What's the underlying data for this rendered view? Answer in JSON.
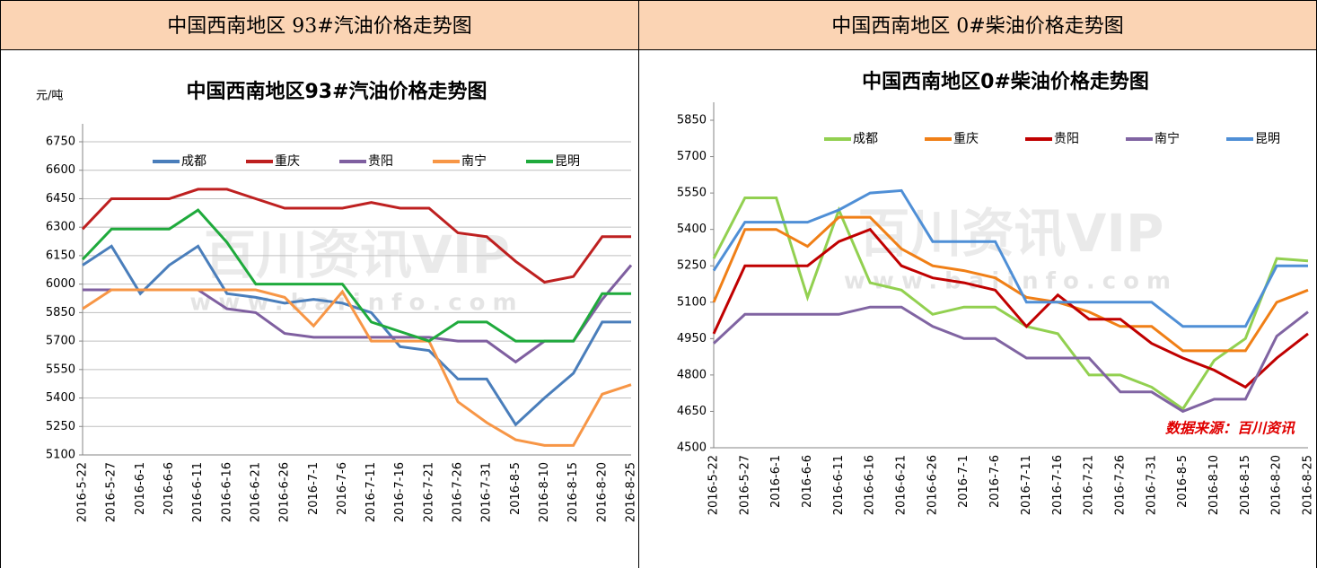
{
  "header": {
    "left": "中国西南地区 93#汽油价格走势图",
    "right": "中国西南地区 0#柴油价格走势图"
  },
  "chart_data": [
    {
      "type": "line",
      "title": "中国西南地区93#汽油价格走势图",
      "y_unit": "元/吨",
      "watermark": [
        "百川资讯VIP",
        "www.baiinfo.com"
      ],
      "categories": [
        "2016-5-22",
        "2016-5-27",
        "2016-6-1",
        "2016-6-6",
        "2016-6-11",
        "2016-6-16",
        "2016-6-21",
        "2016-6-26",
        "2016-7-1",
        "2016-7-6",
        "2016-7-11",
        "2016-7-16",
        "2016-7-21",
        "2016-7-26",
        "2016-7-31",
        "2016-8-5",
        "2016-8-10",
        "2016-8-15",
        "2016-8-20",
        "2016-8-25"
      ],
      "series": [
        {
          "name": "成都",
          "color": "#4a7ebb",
          "values": [
            6100,
            6200,
            5950,
            6100,
            6200,
            5950,
            5930,
            5900,
            5920,
            5900,
            5850,
            5670,
            5650,
            5500,
            5500,
            5260,
            5400,
            5530,
            5800,
            5800
          ]
        },
        {
          "name": "重庆",
          "color": "#be2020",
          "values": [
            6290,
            6450,
            6450,
            6450,
            6500,
            6500,
            6450,
            6400,
            6400,
            6400,
            6430,
            6400,
            6400,
            6270,
            6250,
            6120,
            6010,
            6040,
            6250,
            6250
          ]
        },
        {
          "name": "贵阳",
          "color": "#7f5fa0",
          "values": [
            5970,
            5970,
            5970,
            5970,
            5970,
            5870,
            5850,
            5740,
            5720,
            5720,
            5720,
            5720,
            5720,
            5700,
            5700,
            5590,
            5700,
            5700,
            5920,
            6100
          ]
        },
        {
          "name": "南宁",
          "color": "#f79646",
          "values": [
            5870,
            5970,
            5970,
            5970,
            5970,
            5970,
            5970,
            5930,
            5780,
            5960,
            5700,
            5700,
            5700,
            5380,
            5270,
            5180,
            5150,
            5150,
            5420,
            5470
          ]
        },
        {
          "name": "昆明",
          "color": "#1faa3c",
          "values": [
            6130,
            6290,
            6290,
            6290,
            6390,
            6220,
            6000,
            6000,
            6000,
            6000,
            5800,
            5750,
            5700,
            5800,
            5800,
            5700,
            5700,
            5700,
            5950,
            5950
          ]
        }
      ],
      "ylim": [
        5100,
        6750
      ],
      "yticks": [
        5100,
        5250,
        5400,
        5550,
        5700,
        5850,
        6000,
        6150,
        6300,
        6450,
        6600,
        6750
      ],
      "grid": true
    },
    {
      "type": "line",
      "title": "中国西南地区0#柴油价格走势图",
      "watermark": [
        "百川资讯VIP",
        "www.baiinfo.com"
      ],
      "source": "数据来源：百川资讯",
      "categories": [
        "2016-5-22",
        "2016-5-27",
        "2016-6-1",
        "2016-6-6",
        "2016-6-11",
        "2016-6-16",
        "2016-6-21",
        "2016-6-26",
        "2016-7-1",
        "2016-7-6",
        "2016-7-11",
        "2016-7-16",
        "2016-7-21",
        "2016-7-26",
        "2016-7-31",
        "2016-8-5",
        "2016-8-10",
        "2016-8-15",
        "2016-8-20",
        "2016-8-25"
      ],
      "series": [
        {
          "name": "成都",
          "color": "#92d050",
          "values": [
            5280,
            5530,
            5530,
            5120,
            5480,
            5180,
            5150,
            5050,
            5080,
            5080,
            5000,
            4970,
            4800,
            4800,
            4750,
            4660,
            4860,
            4950,
            5280,
            5270
          ]
        },
        {
          "name": "重庆",
          "color": "#f07f16",
          "values": [
            5100,
            5400,
            5400,
            5330,
            5450,
            5450,
            5320,
            5250,
            5230,
            5200,
            5120,
            5100,
            5060,
            5000,
            5000,
            4900,
            4900,
            4900,
            5100,
            5150
          ]
        },
        {
          "name": "贵阳",
          "color": "#c00000",
          "values": [
            4970,
            5250,
            5250,
            5250,
            5350,
            5400,
            5250,
            5200,
            5180,
            5150,
            5000,
            5130,
            5030,
            5030,
            4930,
            4870,
            4820,
            4750,
            4870,
            4970
          ]
        },
        {
          "name": "南宁",
          "color": "#8064a2",
          "values": [
            4930,
            5050,
            5050,
            5050,
            5050,
            5080,
            5080,
            5000,
            4950,
            4950,
            4870,
            4870,
            4870,
            4730,
            4730,
            4650,
            4700,
            4700,
            4960,
            5060
          ]
        },
        {
          "name": "昆明",
          "color": "#4f8fd6",
          "values": [
            5230,
            5430,
            5430,
            5430,
            5480,
            5550,
            5560,
            5350,
            5350,
            5350,
            5100,
            5100,
            5100,
            5100,
            5100,
            5000,
            5000,
            5000,
            5250,
            5250
          ]
        }
      ],
      "ylim": [
        4500,
        5850
      ],
      "yticks": [
        4500,
        4650,
        4800,
        4950,
        5100,
        5250,
        5400,
        5550,
        5700,
        5850
      ],
      "grid": false
    }
  ]
}
